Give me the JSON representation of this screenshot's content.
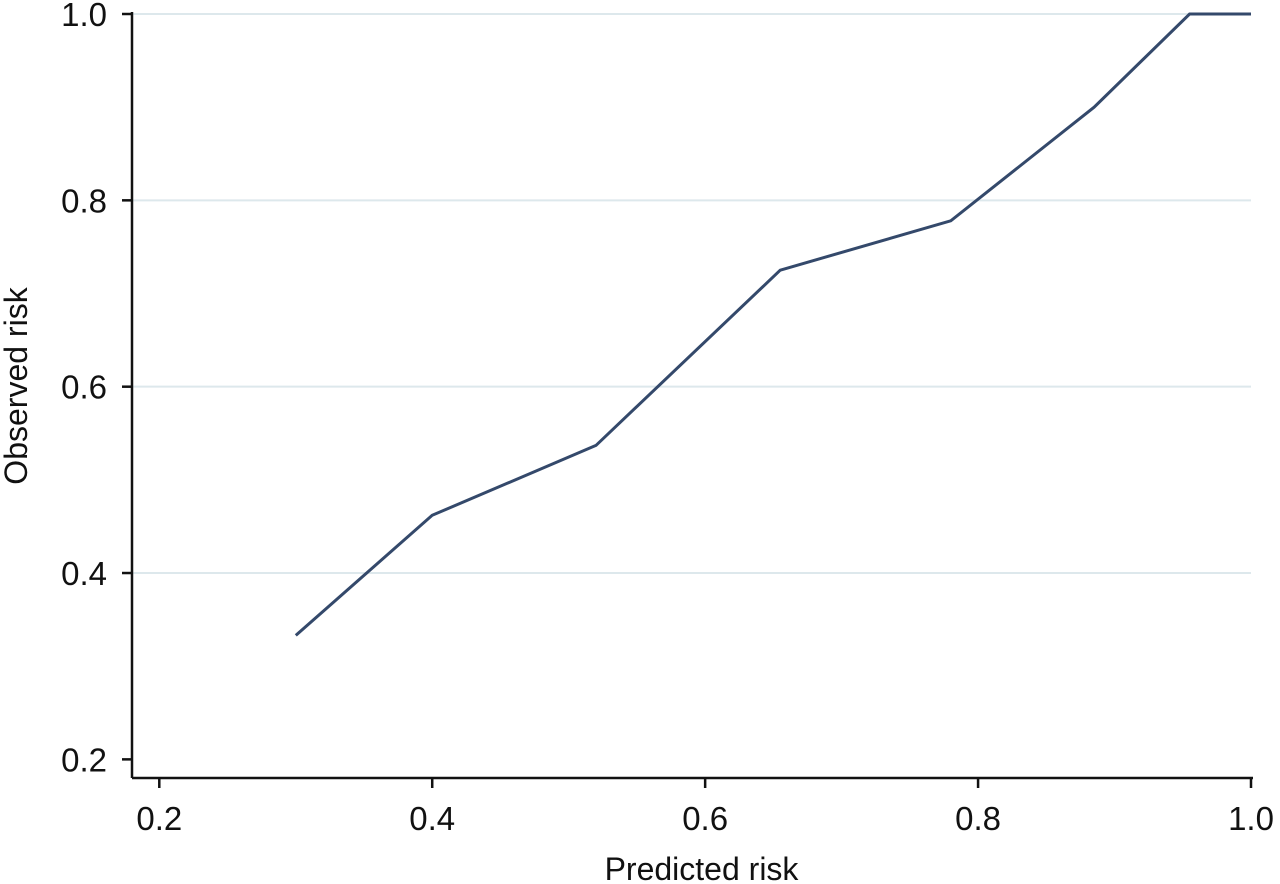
{
  "chart_data": {
    "type": "line",
    "xlabel": "Predicted risk",
    "ylabel": "Observed risk",
    "xlim": [
      0.18,
      1.0
    ],
    "ylim": [
      0.18,
      1.0
    ],
    "x_ticks": [
      "0.2",
      "0.4",
      "0.6",
      "0.8",
      "1.0"
    ],
    "y_ticks": [
      "0.2",
      "0.4",
      "0.6",
      "0.8",
      "1.0"
    ],
    "grid": "horizontal",
    "series": [
      {
        "x": [
          0.3,
          0.4,
          0.52,
          0.655,
          0.78,
          0.885,
          0.955,
          1.0
        ],
        "y": [
          0.333,
          0.462,
          0.537,
          0.725,
          0.778,
          0.9,
          1.0,
          1.0
        ]
      }
    ],
    "colors": {
      "line": "#34496b",
      "grid": "#dde8ec",
      "axis": "#111111"
    }
  }
}
